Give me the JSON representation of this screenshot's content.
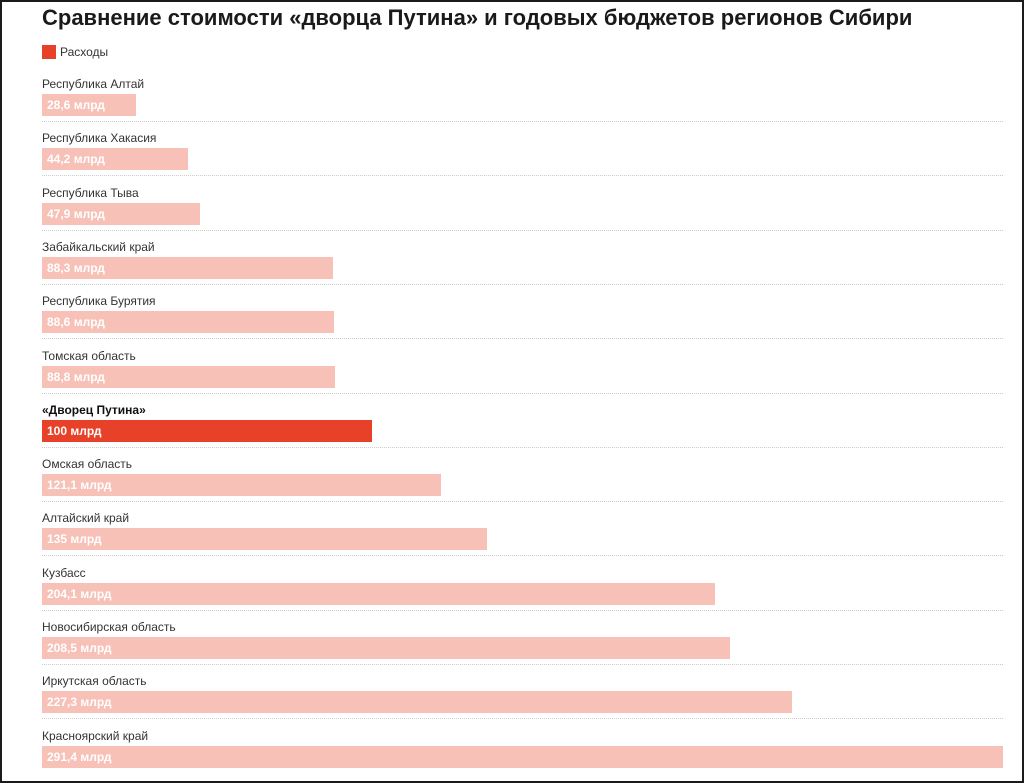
{
  "chart_data": {
    "type": "bar",
    "orientation": "horizontal",
    "title": "Сравнение стоимости «дворца Путина» и годовых бюджетов регионов Сибири",
    "legend": [
      {
        "label": "Расходы",
        "color": "#e8412a"
      }
    ],
    "legend_position": "top-left",
    "grid": false,
    "xlim": [
      0,
      291.4
    ],
    "highlight_color": "#e8412a",
    "bar_color": "#f7c1b8",
    "categories": [
      "Республика Алтай",
      "Республика Хакасия",
      "Республика Тыва",
      "Забайкальский край",
      "Республика Бурятия",
      "Томская область",
      "«Дворец Путина»",
      "Омская область",
      "Алтайский край",
      "Кузбасс",
      "Новосибирская область",
      "Иркутская область",
      "Красноярский край"
    ],
    "values": [
      28.6,
      44.2,
      47.9,
      88.3,
      88.6,
      88.8,
      100,
      121.1,
      135,
      204.1,
      208.5,
      227.3,
      291.4
    ],
    "value_labels": [
      "28,6 млрд",
      "44,2 млрд",
      "47,9 млрд",
      "88,3 млрд",
      "88,6 млрд",
      "88,8 млрд",
      "100 млрд",
      "121,1 млрд",
      "135 млрд",
      "204,1 млрд",
      "208,5 млрд",
      "227,3 млрд",
      "291,4 млрд"
    ],
    "highlighted": [
      false,
      false,
      false,
      false,
      false,
      false,
      true,
      false,
      false,
      false,
      false,
      false,
      false
    ]
  }
}
